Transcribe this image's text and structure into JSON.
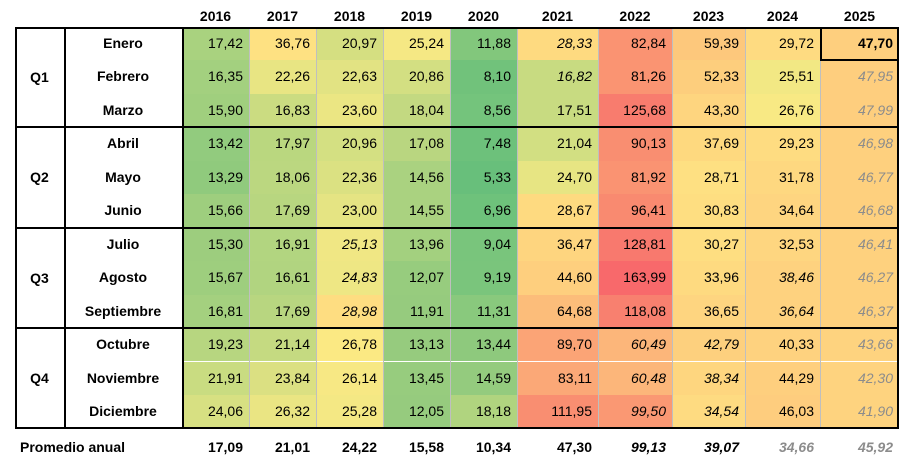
{
  "chart_data": {
    "type": "heatmap",
    "years": [
      "2016",
      "2017",
      "2018",
      "2019",
      "2020",
      "2021",
      "2022",
      "2023",
      "2024",
      "2025"
    ],
    "quarters": [
      {
        "label": "Q1",
        "months": [
          "Enero",
          "Febrero",
          "Marzo"
        ]
      },
      {
        "label": "Q2",
        "months": [
          "Abril",
          "Mayo",
          "Junio"
        ]
      },
      {
        "label": "Q3",
        "months": [
          "Julio",
          "Agosto",
          "Septiembre"
        ]
      },
      {
        "label": "Q4",
        "months": [
          "Octubre",
          "Noviembre",
          "Diciembre"
        ]
      }
    ],
    "values": [
      [
        "17,42",
        "36,76",
        "20,97",
        "25,24",
        "11,88",
        "28,33",
        "82,84",
        "59,39",
        "29,72",
        "47,70"
      ],
      [
        "16,35",
        "22,26",
        "22,63",
        "20,86",
        "8,10",
        "16,82",
        "81,26",
        "52,33",
        "25,51",
        "47,95"
      ],
      [
        "15,90",
        "16,83",
        "23,60",
        "18,04",
        "8,56",
        "17,51",
        "125,68",
        "43,30",
        "26,76",
        "47,99"
      ],
      [
        "13,42",
        "17,97",
        "20,96",
        "17,08",
        "7,48",
        "21,04",
        "90,13",
        "37,69",
        "29,23",
        "46,98"
      ],
      [
        "13,29",
        "18,06",
        "22,36",
        "14,56",
        "5,33",
        "24,70",
        "81,92",
        "28,71",
        "31,78",
        "46,77"
      ],
      [
        "15,66",
        "17,69",
        "23,00",
        "14,55",
        "6,96",
        "28,67",
        "96,41",
        "30,83",
        "34,64",
        "46,68"
      ],
      [
        "15,30",
        "16,91",
        "25,13",
        "13,96",
        "9,04",
        "36,47",
        "128,81",
        "30,27",
        "32,53",
        "46,41"
      ],
      [
        "15,67",
        "16,61",
        "24,83",
        "12,07",
        "9,19",
        "44,60",
        "163,99",
        "33,96",
        "38,46",
        "46,27"
      ],
      [
        "16,81",
        "17,69",
        "28,98",
        "11,91",
        "11,31",
        "64,68",
        "118,08",
        "36,65",
        "36,64",
        "46,37"
      ],
      [
        "19,23",
        "21,14",
        "26,78",
        "13,13",
        "13,44",
        "89,70",
        "60,49",
        "42,79",
        "40,33",
        "43,66"
      ],
      [
        "21,91",
        "23,84",
        "26,14",
        "13,45",
        "14,59",
        "83,11",
        "60,48",
        "38,34",
        "44,29",
        "42,30"
      ],
      [
        "24,06",
        "26,32",
        "25,28",
        "12,05",
        "18,18",
        "111,95",
        "99,50",
        "34,54",
        "46,03",
        "41,90"
      ]
    ],
    "italic_cells": [
      [
        0,
        5
      ],
      [
        1,
        5
      ],
      [
        6,
        2
      ],
      [
        7,
        2
      ],
      [
        8,
        2
      ],
      [
        9,
        6
      ],
      [
        10,
        6
      ],
      [
        11,
        6
      ],
      [
        9,
        7
      ],
      [
        10,
        7
      ],
      [
        11,
        7
      ],
      [
        7,
        8
      ],
      [
        8,
        8
      ],
      [
        1,
        9
      ],
      [
        2,
        9
      ],
      [
        3,
        9
      ],
      [
        4,
        9
      ],
      [
        5,
        9
      ],
      [
        6,
        9
      ],
      [
        7,
        9
      ],
      [
        8,
        9
      ],
      [
        9,
        9
      ],
      [
        10,
        9
      ],
      [
        11,
        9
      ]
    ],
    "grey_cells": [
      [
        1,
        9
      ],
      [
        2,
        9
      ],
      [
        3,
        9
      ],
      [
        4,
        9
      ],
      [
        5,
        9
      ],
      [
        6,
        9
      ],
      [
        7,
        9
      ],
      [
        8,
        9
      ],
      [
        9,
        9
      ],
      [
        10,
        9
      ],
      [
        11,
        9
      ]
    ],
    "bold_cells": [
      [
        0,
        9
      ]
    ],
    "average_label": "Promedio anual",
    "averages": [
      "17,09",
      "21,01",
      "24,22",
      "15,58",
      "10,34",
      "47,30",
      "99,13",
      "39,07",
      "34,66",
      "45,92"
    ],
    "average_italic": [
      6,
      7,
      8,
      9
    ],
    "average_grey": [
      8,
      9
    ],
    "color_scale": {
      "low": "#63be7b",
      "mid": "#ffeb84",
      "high": "#f8696b"
    },
    "cell_colors": [
      [
        "#a9d27f",
        "#fee182",
        "#d5df81",
        "#f5e884",
        "#82c77c",
        "#feda80",
        "#fa9372",
        "#fdc87c",
        "#fedb81",
        "#fecf7e"
      ],
      [
        "#a3d07f",
        "#e8e583",
        "#e2e383",
        "#d3df82",
        "#71c27b",
        "#c8db81",
        "#fa9472",
        "#fdce7d",
        "#f2e884",
        "#fece7e"
      ],
      [
        "#a0cf7e",
        "#cbdc81",
        "#ebe683",
        "#c3d981",
        "#74c47c",
        "#c8db81",
        "#f87c6e",
        "#fed57f",
        "#f8e984",
        "#fece7e"
      ],
      [
        "#92cb7e",
        "#bad77f",
        "#d4e082",
        "#b9d680",
        "#6dc17b",
        "#d2df82",
        "#f98e71",
        "#fed97f",
        "#fedc81",
        "#fed07e"
      ],
      [
        "#90ca7d",
        "#bbd780",
        "#dbe182",
        "#aad280",
        "#68bf7b",
        "#e7e583",
        "#fa9372",
        "#fee082",
        "#fed880",
        "#fed07e"
      ],
      [
        "#9ece7e",
        "#b8d680",
        "#e5e483",
        "#aad280",
        "#6ec27b",
        "#feda80",
        "#f98a70",
        "#fede81",
        "#fed580",
        "#fed07e"
      ],
      [
        "#9dcd7e",
        "#b2d580",
        "#f0e784",
        "#a3d07f",
        "#79c57c",
        "#fed57f",
        "#f8796e",
        "#fede81",
        "#fed680",
        "#fed17e"
      ],
      [
        "#9ece7e",
        "#b1d480",
        "#eee784",
        "#97cc7e",
        "#7ac57c",
        "#fecf7e",
        "#f8696b",
        "#feda80",
        "#fed27f",
        "#fed17e"
      ],
      [
        "#a4d07f",
        "#b8d680",
        "#fedd81",
        "#96cb7e",
        "#89c97d",
        "#fcbd7a",
        "#f8806f",
        "#fed580",
        "#fed27f",
        "#fed17e"
      ],
      [
        "#b7d680",
        "#c5da81",
        "#fbe983",
        "#96cb7e",
        "#8ec97d",
        "#fba476",
        "#fcb67a",
        "#fdd07e",
        "#fed27f",
        "#fed37f"
      ],
      [
        "#c9dc81",
        "#dbe082",
        "#f7e884",
        "#97cc7e",
        "#94cb7e",
        "#fba877",
        "#fcb67a",
        "#fed67f",
        "#fecf7e",
        "#fed37f"
      ],
      [
        "#d7e082",
        "#eae583",
        "#f4e884",
        "#96cb7e",
        "#b0d47f",
        "#f98e71",
        "#fa9873",
        "#fedb81",
        "#fecd7e",
        "#fed37f"
      ]
    ]
  }
}
